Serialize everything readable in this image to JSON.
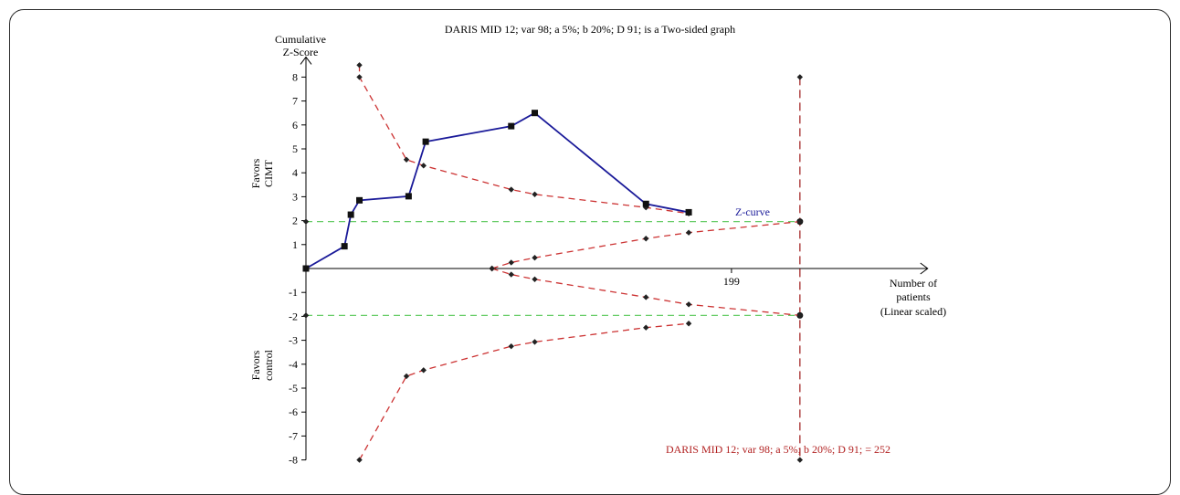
{
  "chart_data": {
    "type": "line",
    "title": "DARIS MID 12; var 98; a 5%; b 20%; D 91; is a Two-sided graph",
    "ylabel": [
      "Cumulative",
      "Z-Score"
    ],
    "xlabel": [
      "Number of",
      "patients",
      "(Linear scaled)"
    ],
    "favors_upper": [
      "Favors",
      "CIMT"
    ],
    "favors_lower": [
      "Favors",
      "control"
    ],
    "ylim": [
      -8,
      8
    ],
    "xlim": [
      0,
      252
    ],
    "y_ticks": [
      -8,
      -7,
      -6,
      -5,
      -4,
      -3,
      -2,
      -1,
      1,
      2,
      3,
      4,
      5,
      6,
      7,
      8
    ],
    "x_tick_labels": [
      {
        "x": 199,
        "label": "199"
      }
    ],
    "x_axis_end": 260,
    "series": [
      {
        "name": "Z-curve",
        "color": "#1a1a99",
        "marker": "square",
        "points": [
          [
            0,
            0
          ],
          [
            18,
            0.93
          ],
          [
            21,
            2.25
          ],
          [
            25,
            2.85
          ],
          [
            48,
            3.02
          ],
          [
            56,
            5.3
          ],
          [
            96,
            5.95
          ],
          [
            107,
            6.5
          ],
          [
            159,
            2.7
          ],
          [
            179,
            2.35
          ]
        ]
      },
      {
        "name": "upper monitoring boundary",
        "color": "#cc3333",
        "dashed": true,
        "marker": "diamond",
        "points": [
          [
            25,
            8.5
          ],
          [
            25,
            8.0
          ],
          [
            47,
            4.55
          ],
          [
            55,
            4.3
          ],
          [
            96,
            3.3
          ],
          [
            107,
            3.1
          ],
          [
            159,
            2.55
          ],
          [
            179,
            2.3
          ]
        ]
      },
      {
        "name": "lower monitoring boundary",
        "color": "#cc3333",
        "dashed": true,
        "marker": "diamond",
        "points": [
          [
            25,
            -8.0
          ],
          [
            47,
            -4.5
          ],
          [
            55,
            -4.25
          ],
          [
            96,
            -3.25
          ],
          [
            107,
            -3.07
          ],
          [
            159,
            -2.47
          ],
          [
            179,
            -2.3
          ]
        ]
      },
      {
        "name": "upper futility boundary",
        "color": "#cc3333",
        "dashed": true,
        "marker": "diamond",
        "points": [
          [
            87,
            0
          ],
          [
            96,
            0.25
          ],
          [
            107,
            0.45
          ],
          [
            159,
            1.25
          ],
          [
            179,
            1.5
          ],
          [
            231,
            1.96
          ]
        ]
      },
      {
        "name": "lower futility boundary",
        "color": "#cc3333",
        "dashed": true,
        "marker": "diamond",
        "points": [
          [
            87,
            0
          ],
          [
            96,
            -0.25
          ],
          [
            107,
            -0.45
          ],
          [
            159,
            -1.2
          ],
          [
            179,
            -1.5
          ],
          [
            231,
            -1.96
          ]
        ]
      }
    ],
    "conventional_boundaries": [
      1.96,
      -1.96
    ],
    "conventional_color": "#66cc66",
    "required_information_size": {
      "x": 231,
      "color": "#a52a2a",
      "label": "DARIS MID 12; var 98; a 5%; b 20%; D 91; = 252"
    },
    "z_curve_label": "Z-curve",
    "grid": false,
    "legend": "none"
  }
}
